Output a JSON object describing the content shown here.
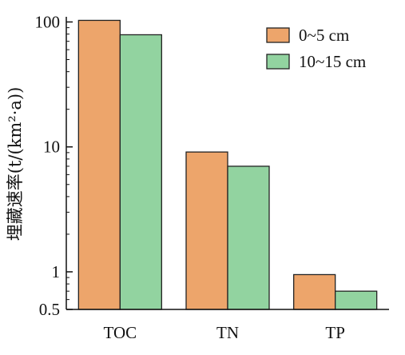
{
  "chart_data": {
    "type": "bar",
    "categories": [
      "TOC",
      "TN",
      "TP"
    ],
    "series": [
      {
        "name": "0~5 cm",
        "values": [
          103,
          9.1,
          0.95
        ],
        "color": "#eda56b"
      },
      {
        "name": "10~15 cm",
        "values": [
          79,
          7.0,
          0.7
        ],
        "color": "#92d3a0"
      }
    ],
    "ylabel": "埋藏速率(t/(km²·a))",
    "yscale": "log",
    "ylim": [
      0.5,
      110
    ],
    "yticks": [
      0.5,
      1,
      10,
      100
    ],
    "ytick_labels": [
      "0.5",
      "1",
      "10",
      "100"
    ],
    "legend_position": "top-right",
    "grid": false
  }
}
